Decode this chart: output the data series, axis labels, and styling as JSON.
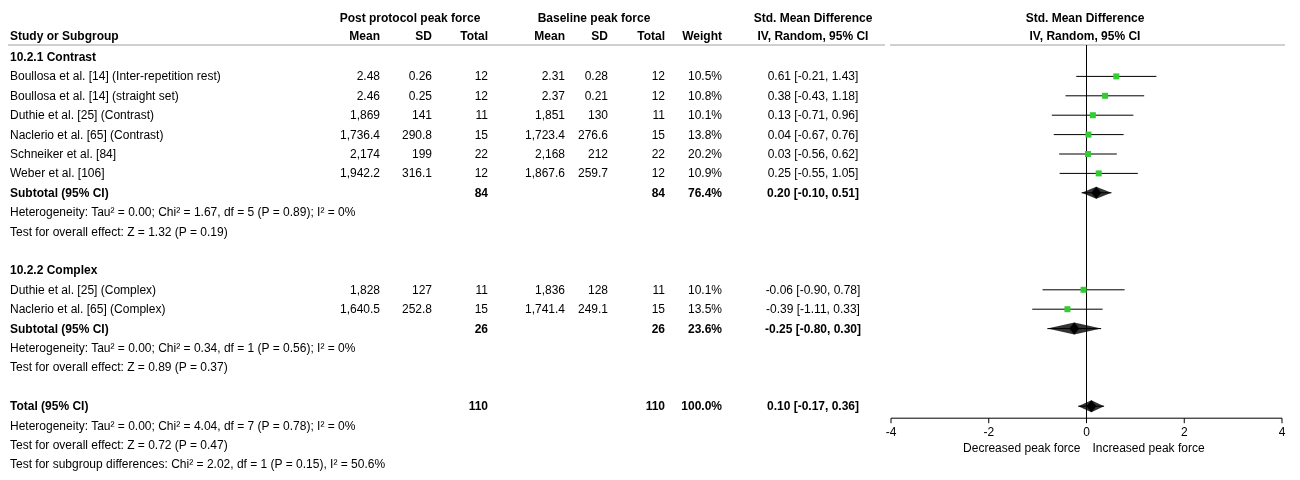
{
  "chart_data": [
    {
      "type": "other",
      "categories": [
        "Study or Subgroup",
        "Mean",
        "SD",
        "Total",
        "Mean",
        "SD",
        "Total",
        "Weight",
        "IV, Random, 95% CI"
      ],
      "annotations": [
        "Post protocol peak force",
        "Baseline peak force",
        "Std. Mean Difference"
      ],
      "y_categories": [
        "10.2.1 Contrast",
        "Boullosa et al. [14] (Inter-repetition rest)",
        "Boullosa et al. [14] (straight set)",
        "Duthie et al. [25] (Contrast)",
        "Naclerio et al. [65] (Contrast)",
        "Schneiker et al. [84]",
        "Weber et al. [106]",
        "Subtotal (95% CI)",
        "Heterogeneity: Tau² = 0.00; Chi² = 1.67, df = 5 (P = 0.89); I² = 0%",
        "Test for overall effect: Z = 1.32 (P = 0.19)",
        null,
        "10.2.2 Complex",
        "Duthie et al. [25] (Complex)",
        "Naclerio et al. [65] (Complex)",
        "Subtotal (95% CI)",
        "Heterogeneity: Tau² = 0.00; Chi² = 0.34, df = 1 (P = 0.56); I² = 0%",
        "Test for overall effect: Z = 0.89 (P = 0.37)",
        null,
        "Total (95% CI)",
        "Heterogeneity: Tau² = 0.00; Chi² = 4.04, df = 7 (P = 0.78); I² = 0%",
        "Test for overall effect: Z = 0.72 (P = 0.47)",
        "Test for subgroup differences: Chi² = 2.02, df = 1 (P = 0.15), I² = 50.6%"
      ],
      "cell_labels": [
        [
          null,
          null,
          null,
          null,
          null,
          null,
          null,
          null
        ],
        [
          "2.48",
          "0.26",
          "12",
          "2.31",
          "0.28",
          "12",
          "10.5%",
          "0.61 [-0.21, 1.43]"
        ],
        [
          "2.46",
          "0.25",
          "12",
          "2.37",
          "0.21",
          "12",
          "10.8%",
          "0.38 [-0.43, 1.18]"
        ],
        [
          "1,869",
          "141",
          "11",
          "1,851",
          "130",
          "11",
          "10.1%",
          "0.13 [-0.71, 0.96]"
        ],
        [
          "1,736.4",
          "290.8",
          "15",
          "1,723.4",
          "276.6",
          "15",
          "13.8%",
          "0.04 [-0.67, 0.76]"
        ],
        [
          "2,174",
          "199",
          "22",
          "2,168",
          "212",
          "22",
          "20.2%",
          "0.03 [-0.56, 0.62]"
        ],
        [
          "1,942.2",
          "316.1",
          "12",
          "1,867.6",
          "259.7",
          "12",
          "10.9%",
          "0.25 [-0.55, 1.05]"
        ],
        [
          null,
          null,
          "84",
          null,
          null,
          "84",
          "76.4%",
          "0.20 [-0.10, 0.51]"
        ],
        [
          null,
          null,
          null,
          null,
          null,
          null,
          null,
          null
        ],
        [
          null,
          null,
          null,
          null,
          null,
          null,
          null,
          null
        ],
        [
          null,
          null,
          null,
          null,
          null,
          null,
          null,
          null
        ],
        [
          null,
          null,
          null,
          null,
          null,
          null,
          null,
          null
        ],
        [
          "1,828",
          "127",
          "11",
          "1,836",
          "128",
          "11",
          "10.1%",
          "-0.06 [-0.90, 0.78]"
        ],
        [
          "1,640.5",
          "252.8",
          "15",
          "1,741.4",
          "249.1",
          "15",
          "13.5%",
          "-0.39 [-1.11, 0.33]"
        ],
        [
          null,
          null,
          "26",
          null,
          null,
          "26",
          "23.6%",
          "-0.25 [-0.80, 0.30]"
        ],
        [
          null,
          null,
          null,
          null,
          null,
          null,
          null,
          null
        ],
        [
          null,
          null,
          null,
          null,
          null,
          null,
          null,
          null
        ],
        [
          null,
          null,
          null,
          null,
          null,
          null,
          null,
          null
        ],
        [
          null,
          null,
          "110",
          null,
          null,
          "110",
          "100.0%",
          "0.10 [-0.17, 0.36]"
        ],
        [
          null,
          null,
          null,
          null,
          null,
          null,
          null,
          null
        ],
        [
          null,
          null,
          null,
          null,
          null,
          null,
          null,
          null
        ],
        [
          null,
          null,
          null,
          null,
          null,
          null,
          null,
          null
        ]
      ]
    },
    {
      "type": "scatter",
      "orientation": "horizontal",
      "title": "Std. Mean Difference",
      "subtitle": "IV, Random, 95% CI",
      "categories": [
        null,
        null,
        null,
        null,
        null,
        null,
        null,
        null,
        null,
        null,
        null,
        null,
        null,
        null,
        null,
        null,
        null,
        null,
        null
      ],
      "series": [
        {
          "type": "scatter",
          "marker": "square",
          "color": "#33cc33",
          "values": [
            null,
            0.61,
            0.38,
            0.13,
            0.04,
            0.03,
            0.25,
            null,
            null,
            null,
            null,
            null,
            -0.06,
            -0.39,
            null,
            null,
            null,
            null,
            null
          ],
          "errors": [
            null,
            [
              -0.21,
              1.43
            ],
            [
              -0.43,
              1.18
            ],
            [
              -0.71,
              0.96
            ],
            [
              -0.67,
              0.76
            ],
            [
              -0.56,
              0.62
            ],
            [
              -0.55,
              1.05
            ],
            null,
            null,
            null,
            null,
            null,
            [
              -0.9,
              0.78
            ],
            [
              -1.11,
              0.33
            ],
            null,
            null,
            null,
            null,
            null
          ]
        },
        {
          "type": "scatter",
          "marker": "diamond",
          "color": "#000000",
          "values": [
            null,
            null,
            null,
            null,
            null,
            null,
            null,
            0.2,
            null,
            null,
            null,
            null,
            null,
            null,
            -0.25,
            null,
            null,
            null,
            0.1
          ],
          "errors": [
            null,
            null,
            null,
            null,
            null,
            null,
            null,
            [
              -0.1,
              0.51
            ],
            null,
            null,
            null,
            null,
            null,
            null,
            [
              -0.8,
              0.3
            ],
            null,
            null,
            null,
            [
              -0.17,
              0.36
            ]
          ]
        }
      ],
      "xlim": [
        -4,
        4
      ],
      "xticks": [
        -4,
        -2,
        0,
        2,
        4
      ],
      "ref_lines": [
        {
          "axis": "x",
          "value": 0
        }
      ],
      "annotations": [
        "Decreased peak force",
        "Increased peak force"
      ]
    }
  ]
}
